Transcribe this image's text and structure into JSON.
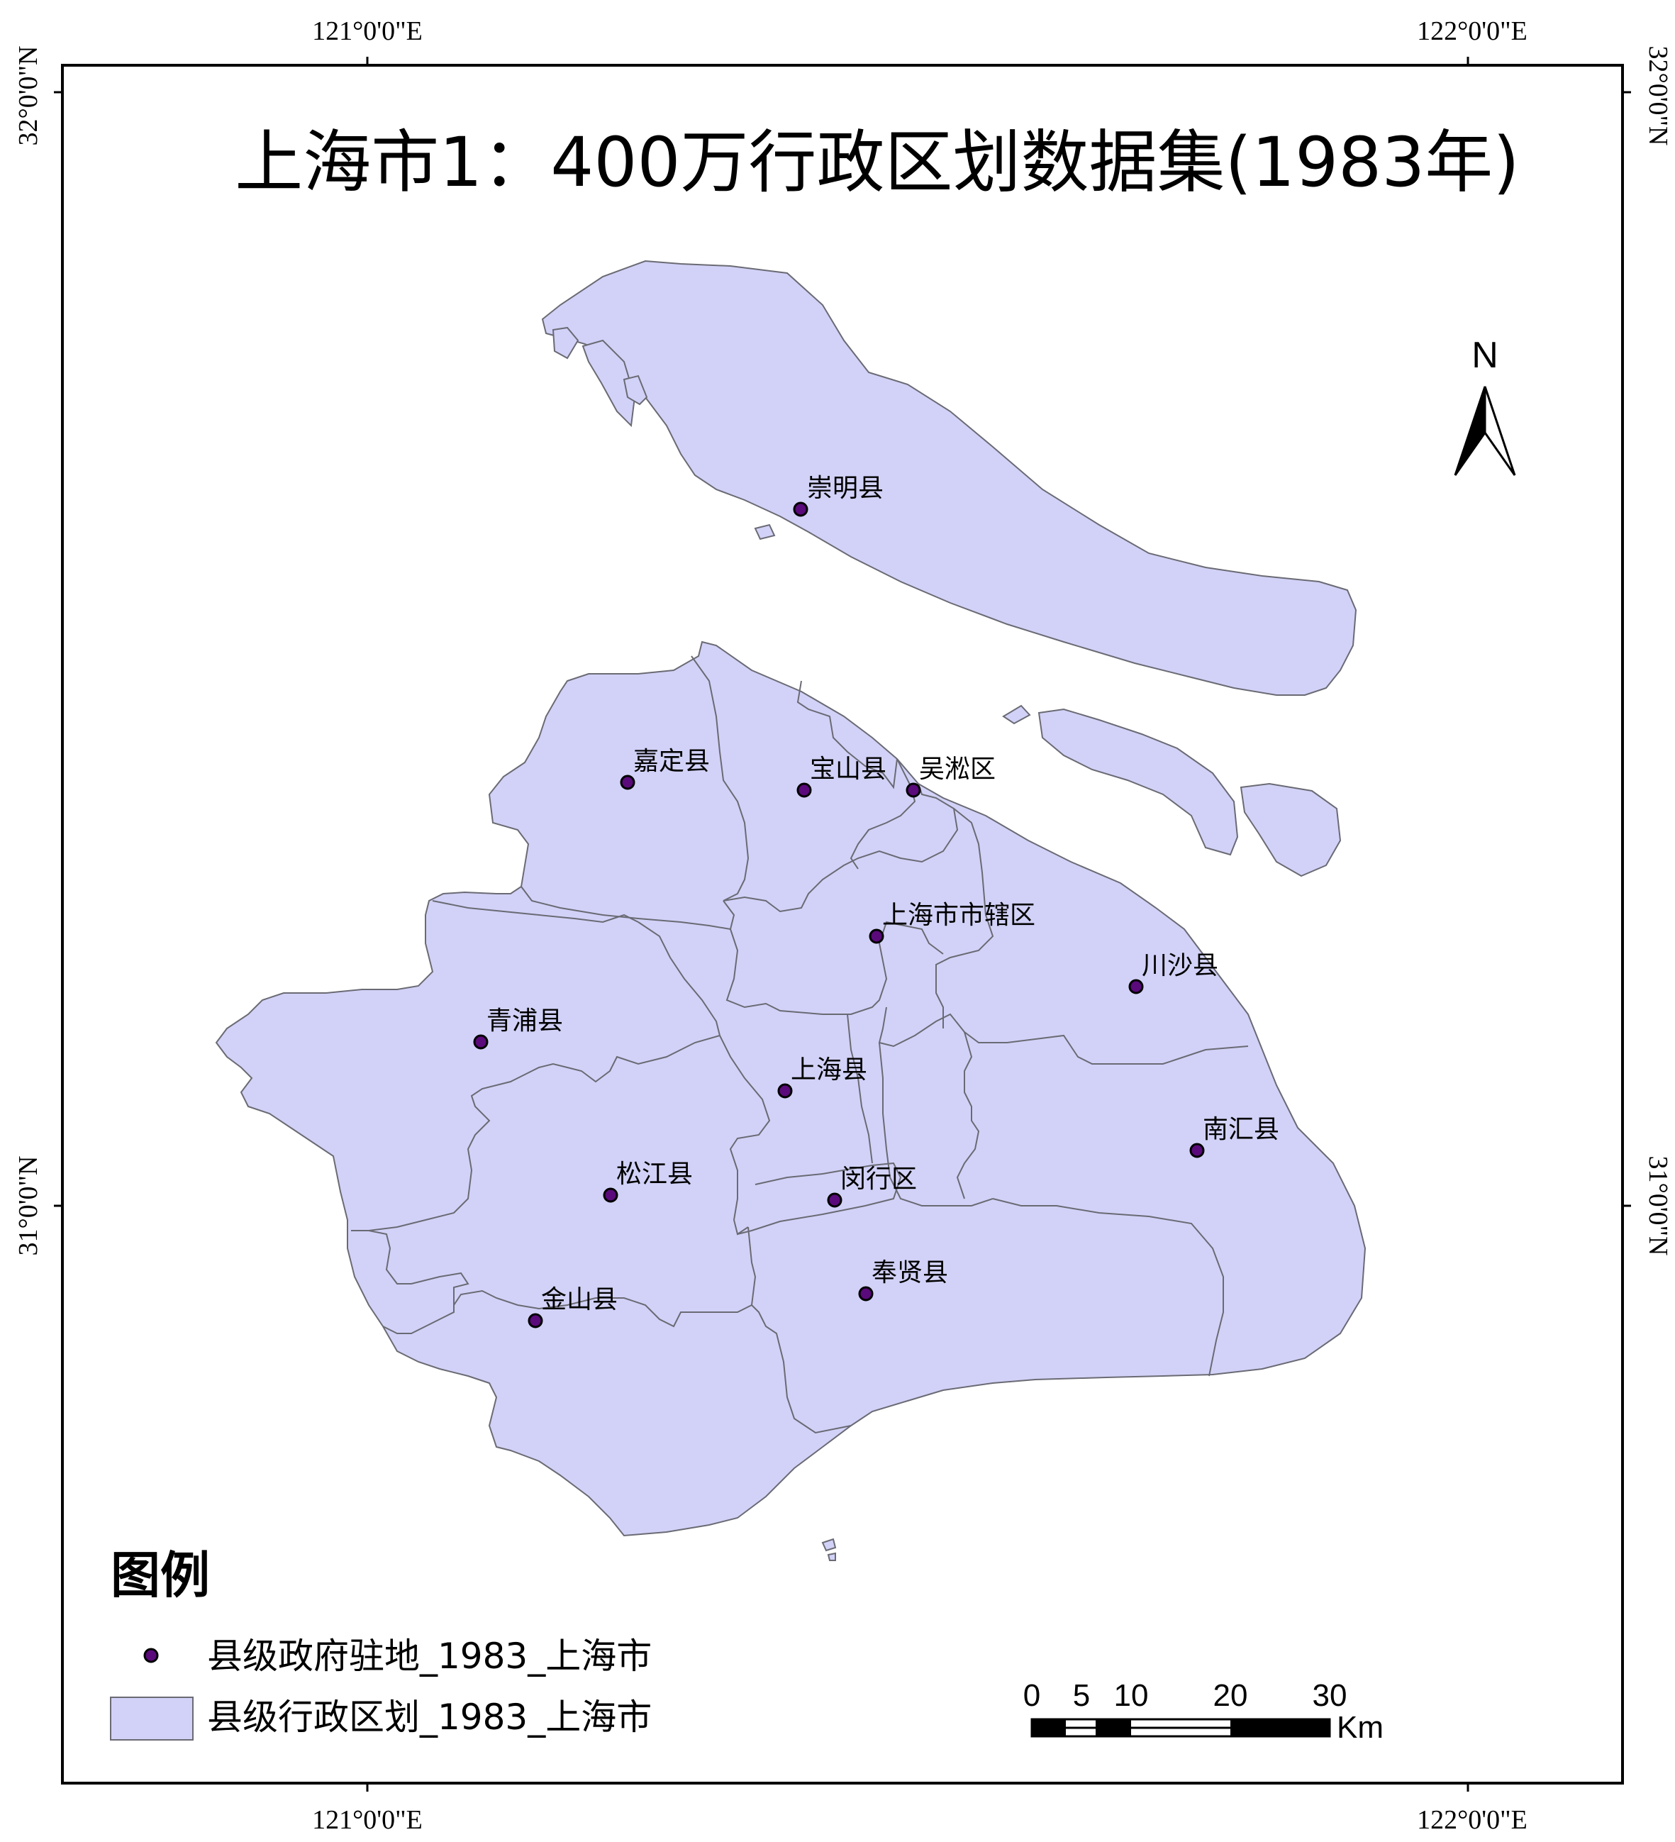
{
  "title": "上海市1：400万行政区划数据集(1983年)",
  "graticule": {
    "lon_west": "121°0'0\"E",
    "lon_east": "122°0'0\"E",
    "lat_north": "32°0'0\"N",
    "lat_south": "31°0'0\"N"
  },
  "north_arrow": {
    "label": "N",
    "icon": "north-arrow-icon"
  },
  "places": [
    {
      "id": "chongming",
      "name": "崇明县"
    },
    {
      "id": "jiading",
      "name": "嘉定县"
    },
    {
      "id": "baoshan",
      "name": "宝山县"
    },
    {
      "id": "wusong",
      "name": "吴淞区"
    },
    {
      "id": "shiqu",
      "name": "上海市市辖区"
    },
    {
      "id": "chuansha",
      "name": "川沙县"
    },
    {
      "id": "qingpu",
      "name": "青浦县"
    },
    {
      "id": "shanghaixian",
      "name": "上海县"
    },
    {
      "id": "nanhui",
      "name": "南汇县"
    },
    {
      "id": "songjiang",
      "name": "松江县"
    },
    {
      "id": "minhang",
      "name": "闵行区"
    },
    {
      "id": "fengxian",
      "name": "奉贤县"
    },
    {
      "id": "jinshan",
      "name": "金山县"
    }
  ],
  "legend": {
    "title": "图例",
    "point_layer": "县级政府驻地_1983_上海市",
    "polygon_layer": "县级行政区划_1983_上海市"
  },
  "scale_bar": {
    "ticks": [
      "0",
      "5",
      "10",
      "20",
      "30"
    ],
    "unit": "Km"
  },
  "colors": {
    "region_fill": "#d2d2f8",
    "region_stroke": "#6a6a74",
    "seat_fill": "#5a0a7a"
  }
}
